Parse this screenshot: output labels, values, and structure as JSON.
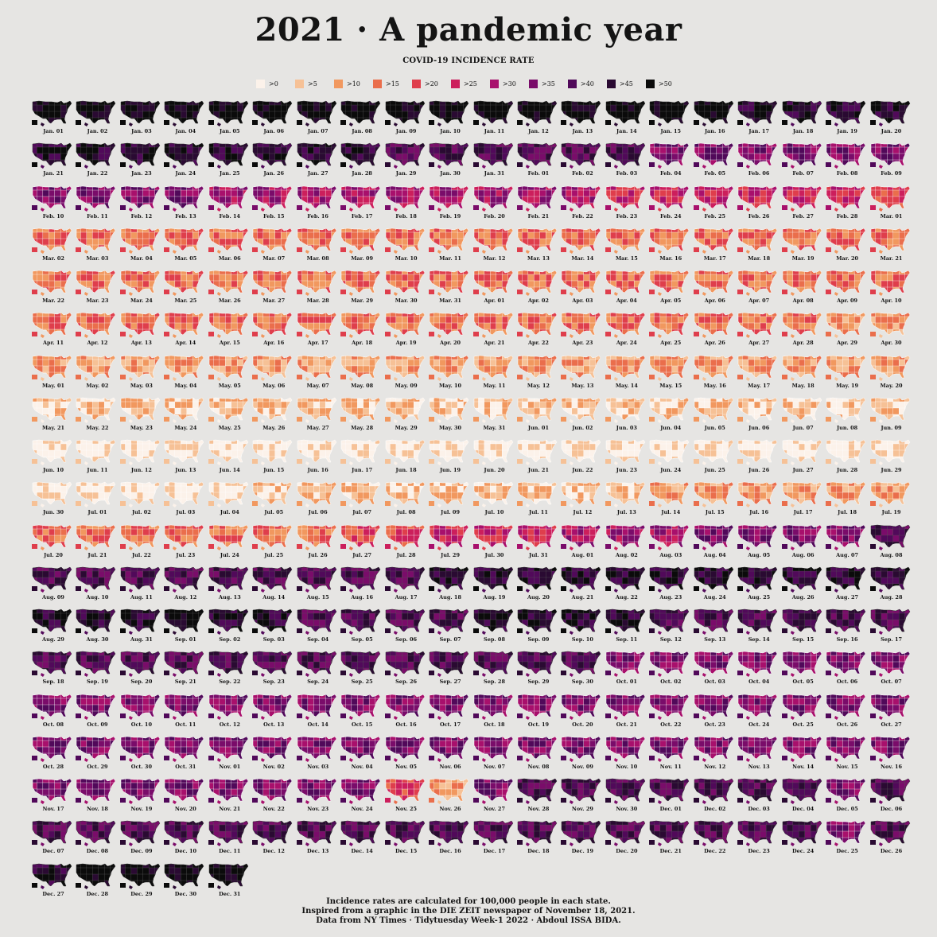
{
  "title": "2021 · A pandemic year",
  "subtitle": "COVID-19 INCIDENCE RATE",
  "legend": [
    {
      "label": ">0",
      "color": "#fcf2ea"
    },
    {
      "label": ">5",
      "color": "#f6c196"
    },
    {
      "label": ">10",
      "color": "#f1985f"
    },
    {
      "label": ">15",
      "color": "#ea6e4c"
    },
    {
      "label": ">20",
      "color": "#df3e4c"
    },
    {
      "label": ">25",
      "color": "#cc1f5c"
    },
    {
      "label": ">30",
      "color": "#a8106c"
    },
    {
      "label": ">35",
      "color": "#7a0c6a"
    },
    {
      "label": ">40",
      "color": "#51095a"
    },
    {
      "label": ">45",
      "color": "#2a0a32"
    },
    {
      "label": ">50",
      "color": "#0b0b0b"
    }
  ],
  "footer": {
    "line1": "Incidence rates are calculated for 100,000 people in each state.",
    "line2": "Inspired from a graphic in the DIE ZEIT newspaper of November 18, 2021.",
    "line3": "Data from NY Times · Tidytuesday Week-1 2022 · Abdoul ISSA BIDA."
  },
  "chart_data": {
    "type": "heatmap",
    "title": "2021 · A pandemic year",
    "subtitle": "COVID-19 INCIDENCE RATE",
    "note": "Small-multiple choropleth maps of US states, one per day of 2021; values are the approximate dominant legend bin for each day",
    "bins": [
      ">0",
      ">5",
      ">10",
      ">15",
      ">20",
      ">25",
      ">30",
      ">35",
      ">40",
      ">45",
      ">50"
    ],
    "dominant_bin_by_month": {
      "Jan": [
        10,
        10,
        10,
        10,
        10,
        10,
        10,
        10,
        10,
        10,
        10,
        10,
        10,
        10,
        10,
        10,
        9,
        9,
        9,
        9,
        9,
        9,
        9,
        9,
        9,
        9,
        9,
        9,
        8,
        8,
        8
      ],
      "Feb": [
        8,
        8,
        8,
        7,
        7,
        7,
        7,
        7,
        7,
        7,
        7,
        7,
        7,
        6,
        6,
        6,
        6,
        6,
        6,
        6,
        6,
        6,
        5,
        5,
        5,
        5,
        5,
        5
      ],
      "Mar": [
        4,
        3,
        3,
        3,
        3,
        3,
        3,
        3,
        3,
        3,
        3,
        3,
        3,
        3,
        3,
        3,
        3,
        3,
        3,
        3,
        3,
        3,
        3,
        3,
        3,
        3,
        3,
        3,
        3,
        3,
        3
      ],
      "Apr": [
        3,
        3,
        3,
        3,
        3,
        3,
        3,
        3,
        3,
        3,
        3,
        3,
        3,
        3,
        3,
        3,
        3,
        3,
        3,
        3,
        3,
        3,
        3,
        3,
        3,
        3,
        3,
        3,
        2,
        2
      ],
      "May": [
        2,
        2,
        2,
        2,
        2,
        2,
        2,
        2,
        2,
        2,
        2,
        2,
        2,
        2,
        2,
        2,
        2,
        2,
        2,
        2,
        1,
        1,
        1,
        1,
        1,
        1,
        1,
        1,
        1,
        1,
        1
      ],
      "Jun": [
        1,
        1,
        1,
        1,
        1,
        1,
        1,
        1,
        1,
        0,
        0,
        0,
        0,
        0,
        0,
        0,
        0,
        0,
        0,
        0,
        0,
        0,
        0,
        0,
        0,
        0,
        0,
        0,
        0,
        0
      ],
      "Jul": [
        0,
        0,
        0,
        0,
        1,
        1,
        1,
        1,
        1,
        1,
        1,
        1,
        1,
        2,
        2,
        2,
        2,
        2,
        2,
        3,
        3,
        3,
        3,
        3,
        3,
        3,
        4,
        4,
        5,
        5,
        5
      ],
      "Aug": [
        6,
        6,
        6,
        7,
        7,
        7,
        7,
        8,
        8,
        8,
        8,
        8,
        8,
        8,
        8,
        8,
        8,
        9,
        9,
        9,
        9,
        9,
        9,
        9,
        9,
        9,
        9,
        9,
        9,
        9,
        9
      ],
      "Sep": [
        10,
        9,
        9,
        8,
        8,
        8,
        8,
        9,
        9,
        9,
        9,
        8,
        8,
        8,
        8,
        8,
        8,
        8,
        8,
        8,
        8,
        8,
        8,
        8,
        8,
        8,
        8,
        8,
        8,
        8
      ],
      "Oct": [
        7,
        7,
        7,
        7,
        7,
        7,
        7,
        7,
        7,
        7,
        7,
        7,
        7,
        7,
        7,
        7,
        7,
        7,
        7,
        7,
        7,
        7,
        7,
        7,
        7,
        7,
        7,
        7,
        7,
        7,
        7
      ],
      "Nov": [
        7,
        7,
        7,
        7,
        7,
        7,
        7,
        7,
        7,
        7,
        7,
        7,
        7,
        7,
        7,
        7,
        7,
        7,
        7,
        7,
        7,
        7,
        7,
        7,
        4,
        2,
        7,
        8,
        8,
        8
      ],
      "Dec": [
        8,
        8,
        8,
        8,
        7,
        8,
        8,
        8,
        8,
        8,
        8,
        8,
        8,
        8,
        8,
        8,
        8,
        8,
        8,
        8,
        8,
        8,
        8,
        8,
        7,
        8,
        9,
        10,
        10,
        10,
        10
      ]
    }
  }
}
